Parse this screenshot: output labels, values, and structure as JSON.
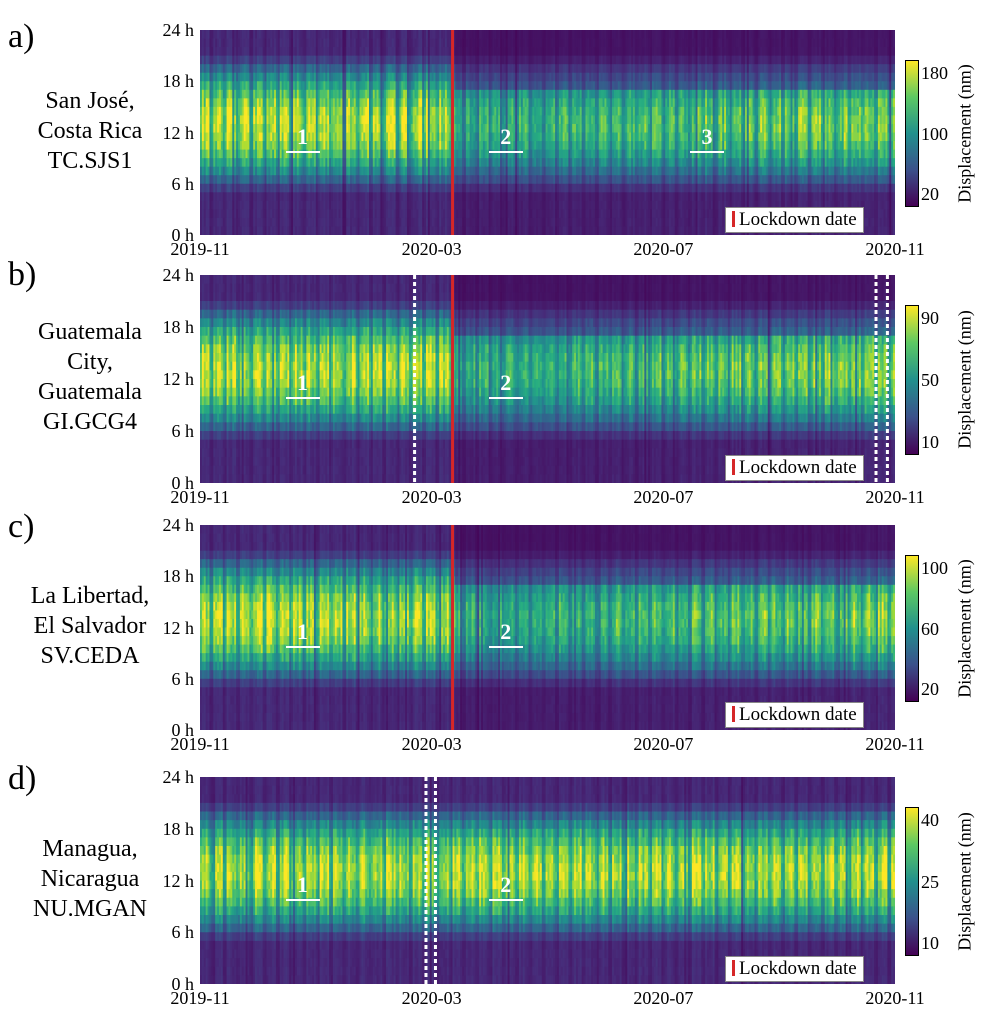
{
  "colorbar_label": "Displacement (nm)",
  "legend_label": "Lockdown date",
  "y_ticks": [
    "24 h",
    "18 h",
    "12 h",
    "6 h",
    "0 h"
  ],
  "x_ticks": [
    "2019-11",
    "2020-03",
    "2020-07",
    "2020-11"
  ],
  "colors": {
    "lockdown_line": "#d62728",
    "viridis_low": "#440154",
    "viridis_high": "#fde725"
  },
  "chart_data": [
    {
      "type": "heatmap",
      "panel": "a)",
      "station": [
        "San José,",
        "Costa Rica",
        "TC.SJS1"
      ],
      "x_range": [
        "2019-11-01",
        "2020-11-01"
      ],
      "ylim": [
        0,
        24
      ],
      "colorbar_ticks": [
        "180",
        "100",
        "20"
      ],
      "lockdown_date": "2020-03-13",
      "annotations": [
        {
          "label": "1",
          "date": "2019-12-25",
          "hour": 11
        },
        {
          "label": "2",
          "date": "2020-04-10",
          "hour": 11
        },
        {
          "label": "3",
          "date": "2020-07-25",
          "hour": 11
        }
      ],
      "gaps": []
    },
    {
      "type": "heatmap",
      "panel": "b)",
      "station": [
        "Guatemala",
        "City,",
        "Guatemala",
        "GI.GCG4"
      ],
      "x_range": [
        "2019-11-01",
        "2020-11-01"
      ],
      "ylim": [
        0,
        24
      ],
      "colorbar_ticks": [
        "90",
        "50",
        "10"
      ],
      "lockdown_date": "2020-03-13",
      "annotations": [
        {
          "label": "1",
          "date": "2019-12-25",
          "hour": 11
        },
        {
          "label": "2",
          "date": "2020-04-10",
          "hour": 11
        }
      ],
      "gaps": [
        "2020-02-22",
        "2020-10-22",
        "2020-10-28"
      ]
    },
    {
      "type": "heatmap",
      "panel": "c)",
      "station": [
        "La Libertad,",
        "El Salvador",
        "SV.CEDA"
      ],
      "x_range": [
        "2019-11-01",
        "2020-11-01"
      ],
      "ylim": [
        0,
        24
      ],
      "colorbar_ticks": [
        "100",
        "60",
        "20"
      ],
      "lockdown_date": "2020-03-13",
      "annotations": [
        {
          "label": "1",
          "date": "2019-12-25",
          "hour": 11
        },
        {
          "label": "2",
          "date": "2020-04-10",
          "hour": 11
        }
      ],
      "gaps": []
    },
    {
      "type": "heatmap",
      "panel": "d)",
      "station": [
        "Managua,",
        "Nicaragua",
        "NU.MGAN"
      ],
      "x_range": [
        "2019-11-01",
        "2020-11-01"
      ],
      "ylim": [
        0,
        24
      ],
      "colorbar_ticks": [
        "40",
        "25",
        "10"
      ],
      "lockdown_date": null,
      "annotations": [
        {
          "label": "1",
          "date": "2019-12-25",
          "hour": 11
        },
        {
          "label": "2",
          "date": "2020-04-10",
          "hour": 11
        }
      ],
      "gaps": [
        "2020-02-28",
        "2020-03-04"
      ]
    }
  ]
}
